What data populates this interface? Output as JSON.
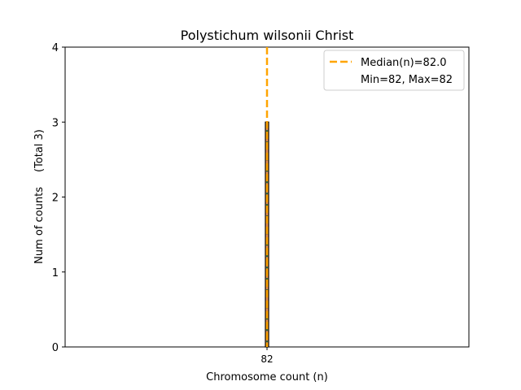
{
  "chart_data": {
    "type": "bar",
    "title": "Polystichum wilsonii Christ",
    "xlabel": "Chromosome count (n)",
    "ylabel": "Num of counts",
    "ylabel_note": "(Total 3)",
    "categories": [
      "82"
    ],
    "values": [
      3
    ],
    "ylim": [
      0,
      4
    ],
    "yticks": [
      0,
      1,
      2,
      3,
      4
    ],
    "xticks": [
      "82"
    ],
    "median": 82.0,
    "min": 82,
    "max": 82,
    "grid": false,
    "legend_position": "top-right",
    "legend": {
      "median_label": "Median(n)=82.0",
      "range_label": "Min=82, Max=82"
    },
    "colors": {
      "bar_fill": "#e8904a",
      "bar_edge": "#000000",
      "bar_hatch": "#1a6b3a",
      "median_line": "#ffa500"
    }
  }
}
